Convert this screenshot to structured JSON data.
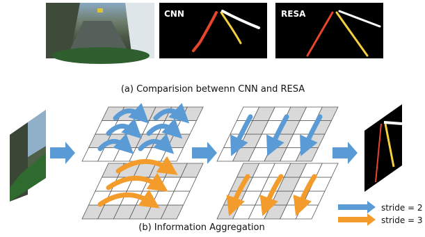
{
  "panels": {
    "cnn_label": "CNN",
    "resa_label": "RESA"
  },
  "captions": {
    "a": "(a) Comparision betwenn CNN and RESA",
    "b": "(b) Information Aggregation"
  },
  "legend": [
    {
      "label": "stride = 2",
      "color": "#5b9bd5"
    },
    {
      "label": "stride = 3",
      "color": "#f39c2c"
    }
  ],
  "colors": {
    "grid_fill": "#ffffff",
    "grid_shaded": "#d9d9d9",
    "grid_stroke": "#555555",
    "arrow_blue": "#5b9bd5",
    "arrow_orange": "#f39c2c",
    "lane_red": "#e8452c",
    "lane_yellow": "#f4d03f",
    "lane_white": "#ffffff",
    "panel_bg": "#000000"
  }
}
